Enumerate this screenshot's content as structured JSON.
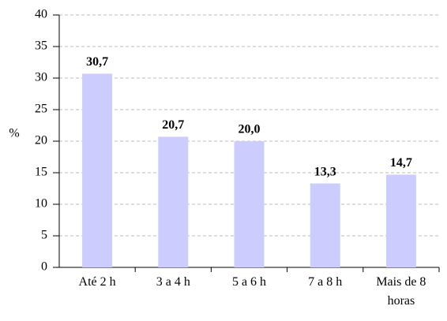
{
  "chart_data": {
    "type": "bar",
    "y_label": "%",
    "categories": [
      "Até 2 h",
      "3 a 4 h",
      "5 a 6 h",
      "7 a 8 h",
      "Mais de 8 horas"
    ],
    "values": [
      30.7,
      20.7,
      20.0,
      13.3,
      14.7
    ],
    "value_labels": [
      "30,7",
      "20,7",
      "20,0",
      "13,3",
      "14,7"
    ],
    "color": "#ccccff",
    "ylim": [
      0,
      40
    ],
    "yticks": [
      0,
      5,
      10,
      15,
      20,
      25,
      30,
      35,
      40
    ],
    "grid": true
  }
}
